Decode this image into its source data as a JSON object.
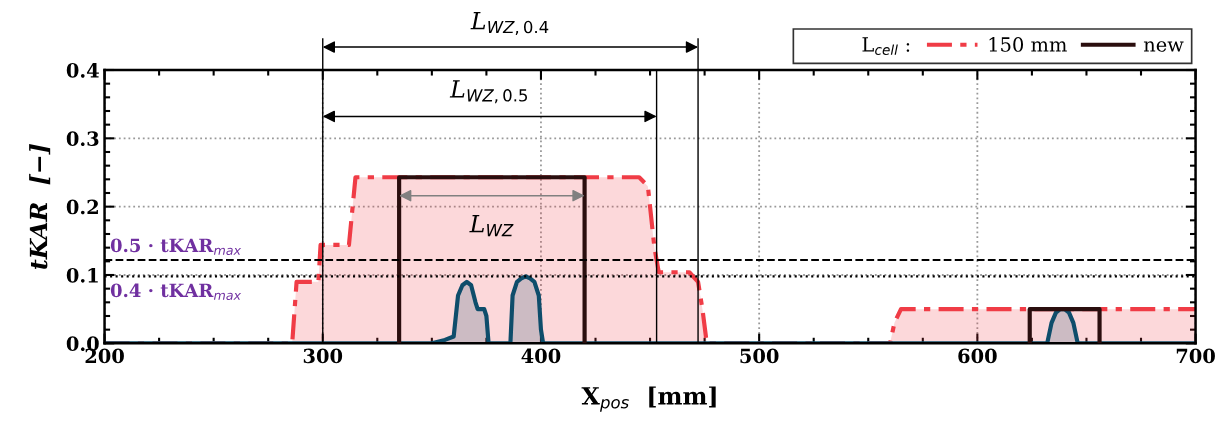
{
  "chart_data": {
    "type": "area",
    "xlabel": "X$_{pos}$  [mm]",
    "ylabel": "tKAR  [−]",
    "legend_title": "L$_{cell}$ :",
    "xlim": [
      200,
      700
    ],
    "xticks": [
      200,
      300,
      400,
      500,
      600,
      700
    ],
    "ylim": [
      0,
      0.4
    ],
    "yticks": [
      {
        "value": 0,
        "label": "0.0"
      },
      {
        "value": 0.1,
        "label": "0.1"
      },
      {
        "value": 0.2,
        "label": "0.2"
      },
      {
        "value": 0.3,
        "label": "0.3"
      },
      {
        "value": 0.4,
        "label": "0.4"
      }
    ],
    "grid": true,
    "legend": "top right",
    "series": [
      {
        "name": "150 mm",
        "color": "#f03c46",
        "line_style": "dashdot",
        "x": [
          200,
          286,
          288,
          298,
          299,
          312,
          315,
          445,
          449,
          452,
          454,
          468,
          472,
          474,
          476,
          560,
          562,
          565,
          700
        ],
        "values": [
          0,
          0,
          0.09,
          0.09,
          0.144,
          0.144,
          0.243,
          0.243,
          0.23,
          0.14,
          0.104,
          0.104,
          0.09,
          0.05,
          0,
          0,
          0.03,
          0.05,
          0.05
        ]
      },
      {
        "name": "new",
        "type": "line",
        "color": "#2a0e0e",
        "line_style": "solid",
        "x": [
          335,
          335,
          420,
          420,
          520,
          624,
          624,
          656,
          656
        ],
        "values": [
          0,
          0.243,
          0.243,
          0,
          null,
          0,
          0.05,
          0.05,
          0
        ]
      },
      {
        "color": "#0e4d6b",
        "line_style": "solid",
        "x": [
          200,
          350,
          356,
          360,
          362,
          364,
          366,
          368,
          370,
          371,
          374,
          375,
          376,
          377,
          386,
          387,
          389,
          391,
          393,
          395,
          397,
          399,
          400,
          401,
          632,
          634,
          636,
          638,
          640,
          642,
          644,
          646,
          700
        ],
        "values": [
          0,
          0,
          0.005,
          0.01,
          0.07,
          0.085,
          0.09,
          0.085,
          0.06,
          0.05,
          0.05,
          0.04,
          0,
          0,
          0,
          0.07,
          0.09,
          0.095,
          0.098,
          0.095,
          0.09,
          0.07,
          0.02,
          0,
          0,
          0.03,
          0.045,
          0.05,
          0.05,
          0.045,
          0.03,
          0,
          0
        ]
      }
    ],
    "ref_lines": [
      {
        "axis": "y",
        "value": 0.122,
        "label": "0.5 · tKAR$_{max}$",
        "color": "#000000",
        "line_style": "dashed"
      },
      {
        "axis": "y",
        "value": 0.098,
        "label": "0.4 · tKAR$_{max}$",
        "color": "#000000",
        "line_style": "dotted"
      },
      {
        "axis": "x",
        "value": 300,
        "color": "#000000"
      },
      {
        "axis": "x",
        "value": 453,
        "color": "#000000"
      },
      {
        "axis": "x",
        "value": 472,
        "color": "#000000"
      }
    ],
    "annotations": [
      "L$_{WZ,0.4}$",
      "L$_{WZ,0.5}$",
      "L$_{WZ}$"
    ]
  }
}
